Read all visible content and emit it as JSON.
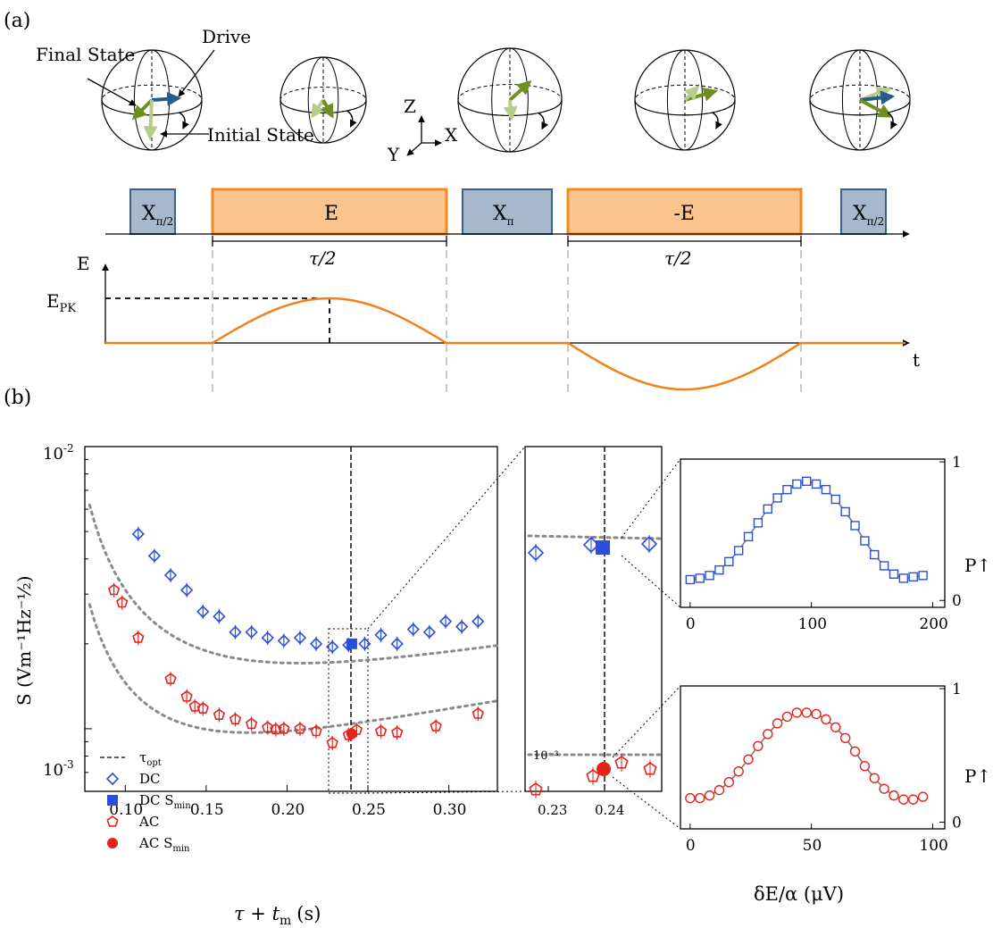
{
  "panel_a": {
    "label": "(a)",
    "bloch_labels": {
      "final_state": "Final State",
      "drive": "Drive",
      "initial_state": "Initial State"
    },
    "axes_labels": {
      "z": "Z",
      "x": "X",
      "y": "Y"
    },
    "pulses": [
      {
        "label": "X",
        "sub": "π/2",
        "kind": "x"
      },
      {
        "label": "E",
        "kind": "e"
      },
      {
        "label": "X",
        "sub": "π",
        "kind": "x"
      },
      {
        "label": "-E",
        "kind": "e"
      },
      {
        "label": "X",
        "sub": "π/2",
        "kind": "x"
      }
    ],
    "tau_half": "τ/2",
    "e_axis": "E",
    "e_pk": "E",
    "e_pk_sub": "PK",
    "t_axis": "t",
    "colors": {
      "pulse_x": "#a7b7cc",
      "pulse_x_border": "#3d6089",
      "pulse_e": "#fbc48e",
      "pulse_e_border": "#f08a1c",
      "vec_dark": "#6e8f1f",
      "vec_light": "#b5cd8b",
      "vec_blue": "#265c8a"
    }
  },
  "panel_b": {
    "label": "(b)",
    "main": {
      "ylabel": "S (Vm⁻¹Hz⁻½)",
      "xlabel": "τ + t",
      "xlabel_sub": "m",
      "xlabel_unit": "(s)",
      "y_ticks": [
        {
          "v": "10",
          "e": "-2"
        },
        {
          "v": "10",
          "e": "-3"
        }
      ],
      "x_ticks": [
        "0.10",
        "0.15",
        "0.20",
        "0.25",
        "0.30"
      ],
      "legend": [
        {
          "label": "τ",
          "sub": "opt",
          "kind": "dash"
        },
        {
          "label": "DC",
          "sub": "",
          "kind": "dc"
        },
        {
          "label": "DC S",
          "sub": "min",
          "kind": "dcmin"
        },
        {
          "label": "AC",
          "sub": "",
          "kind": "ac"
        },
        {
          "label": "AC S",
          "sub": "min",
          "kind": "acmin"
        }
      ]
    },
    "zoom": {
      "x_ticks": [
        "0.23",
        "0.24"
      ],
      "y_annot": "10⁻³"
    },
    "insets": [
      {
        "ylabel": "P↑",
        "y_ticks": [
          "1",
          "0"
        ],
        "x_ticks": [
          "0",
          "100",
          "200"
        ],
        "color": "#2b4fd8"
      },
      {
        "ylabel": "P↑",
        "y_ticks": [
          "1",
          "0"
        ],
        "x_ticks": [
          "0",
          "50",
          "100"
        ],
        "xlabel": "δE/α (μV)",
        "color": "#e5231b"
      }
    ]
  },
  "chart_data": [
    {
      "type": "scatter",
      "xlabel": "τ + t_m (s)",
      "ylabel": "S (Vm^-1 Hz^-1/2)",
      "xlim": [
        0.075,
        0.33
      ],
      "ylim": [
        0.0006,
        0.01
      ],
      "yscale": "log",
      "tau_opt": 0.24,
      "series": [
        {
          "name": "DC",
          "x": [
            0.108,
            0.118,
            0.128,
            0.138,
            0.148,
            0.158,
            0.168,
            0.178,
            0.188,
            0.198,
            0.208,
            0.218,
            0.228,
            0.238,
            0.248,
            0.258,
            0.268,
            0.278,
            0.288,
            0.298,
            0.308,
            0.318
          ],
          "y": [
            0.0049,
            0.0041,
            0.0035,
            0.0031,
            0.0026,
            0.0025,
            0.0022,
            0.0022,
            0.0021,
            0.00205,
            0.0021,
            0.002,
            0.00195,
            0.00198,
            0.002,
            0.00215,
            0.002,
            0.00225,
            0.0022,
            0.0024,
            0.0023,
            0.0024
          ]
        },
        {
          "name": "DC S_min",
          "x": [
            0.24
          ],
          "y": [
            0.002
          ]
        },
        {
          "name": "AC",
          "x": [
            0.093,
            0.098,
            0.108,
            0.128,
            0.138,
            0.143,
            0.148,
            0.158,
            0.168,
            0.178,
            0.188,
            0.193,
            0.198,
            0.208,
            0.218,
            0.228,
            0.238,
            0.243,
            0.258,
            0.268,
            0.292,
            0.318
          ],
          "y": [
            0.0031,
            0.0028,
            0.0021,
            0.0015,
            0.0013,
            0.0012,
            0.00118,
            0.00112,
            0.00108,
            0.00104,
            0.00101,
            0.000995,
            0.001,
            0.001,
            0.00098,
            0.00089,
            0.00095,
            0.00099,
            0.00098,
            0.00097,
            0.00102,
            0.00113
          ]
        },
        {
          "name": "AC S_min",
          "x": [
            0.24
          ],
          "y": [
            0.00096
          ]
        }
      ]
    },
    {
      "type": "line",
      "ylabel": "P↑",
      "xlim": [
        -8,
        210
      ],
      "ylim": [
        0,
        1
      ],
      "series": [
        {
          "name": "DC fringe",
          "x": [
            0,
            8,
            16,
            24,
            32,
            40,
            48,
            56,
            64,
            72,
            80,
            88,
            96,
            104,
            112,
            120,
            128,
            136,
            144,
            152,
            160,
            168,
            176,
            184,
            192
          ],
          "y": [
            0.15,
            0.16,
            0.18,
            0.22,
            0.28,
            0.36,
            0.46,
            0.56,
            0.66,
            0.74,
            0.8,
            0.84,
            0.86,
            0.84,
            0.8,
            0.73,
            0.64,
            0.54,
            0.43,
            0.33,
            0.25,
            0.19,
            0.16,
            0.17,
            0.18
          ]
        }
      ]
    },
    {
      "type": "line",
      "xlabel": "δE/α (μV)",
      "ylabel": "P↑",
      "xlim": [
        -4,
        105
      ],
      "ylim": [
        0,
        1
      ],
      "series": [
        {
          "name": "AC fringe",
          "x": [
            0,
            4,
            8,
            12,
            16,
            20,
            24,
            28,
            32,
            36,
            40,
            44,
            48,
            52,
            56,
            60,
            64,
            68,
            72,
            76,
            80,
            84,
            88,
            92,
            96
          ],
          "y": [
            0.18,
            0.18,
            0.2,
            0.24,
            0.3,
            0.38,
            0.47,
            0.57,
            0.66,
            0.74,
            0.79,
            0.82,
            0.82,
            0.81,
            0.77,
            0.71,
            0.63,
            0.53,
            0.42,
            0.33,
            0.25,
            0.2,
            0.17,
            0.17,
            0.19
          ]
        }
      ]
    }
  ]
}
